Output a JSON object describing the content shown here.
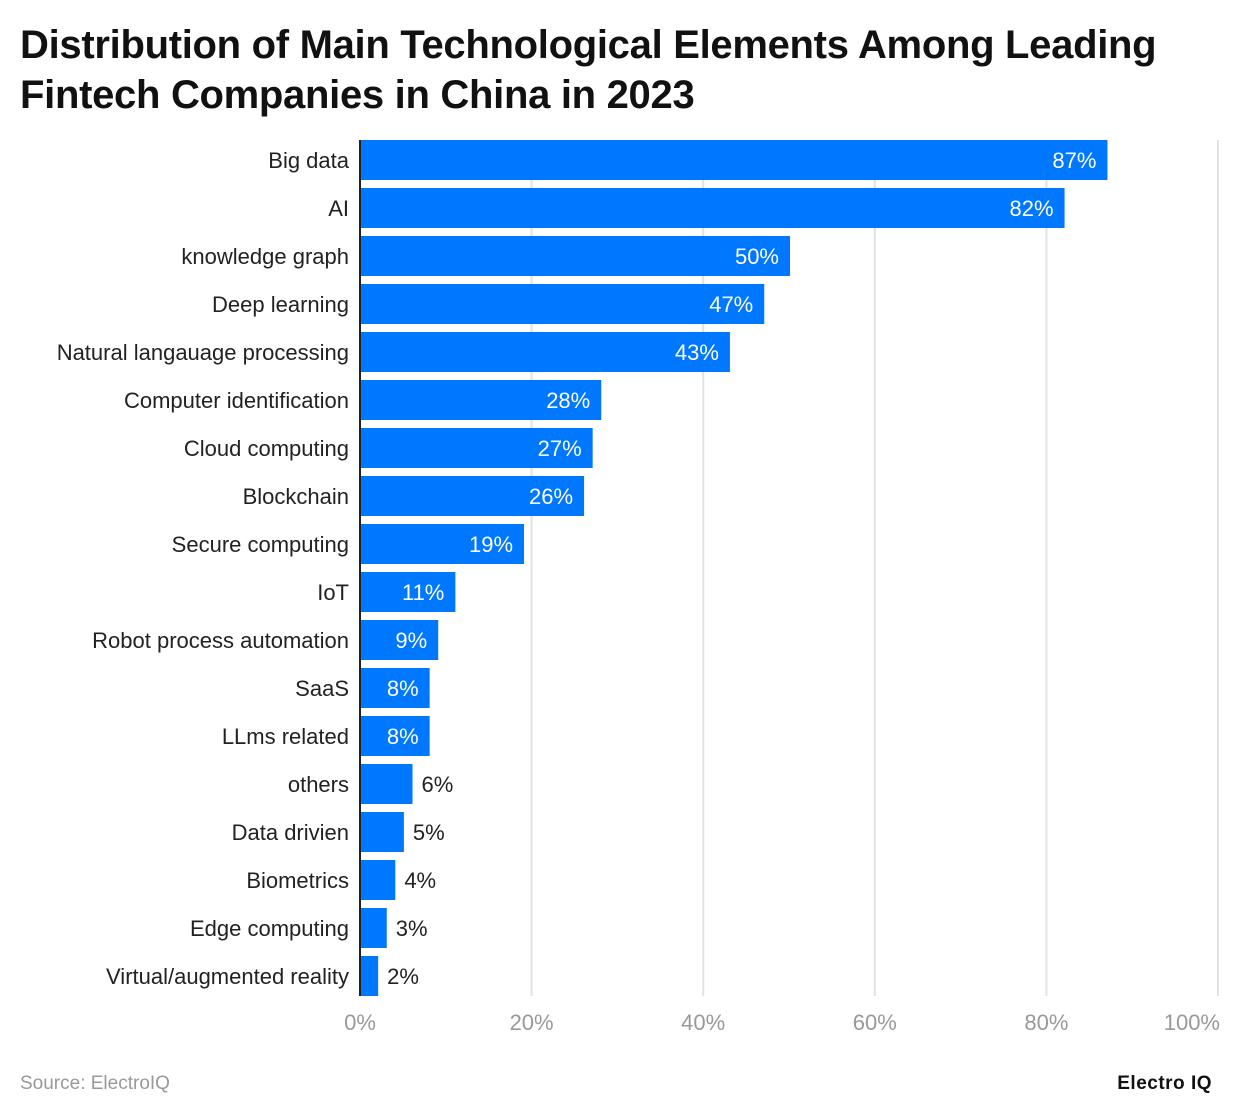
{
  "chart_data": {
    "type": "bar",
    "orientation": "horizontal",
    "title": "Distribution of Main Technological Elements Among Leading Fintech Companies in China in 2023",
    "categories": [
      "Big data",
      "AI",
      "knowledge graph",
      "Deep learning",
      "Natural langauage processing",
      "Computer identification",
      "Cloud computing",
      "Blockchain",
      "Secure computing",
      "IoT",
      "Robot process automation",
      "SaaS",
      "LLms related",
      "others",
      "Data drivien",
      "Biometrics",
      "Edge computing",
      "Virtual/augmented reality"
    ],
    "values": [
      87,
      82,
      50,
      47,
      43,
      28,
      27,
      26,
      19,
      11,
      9,
      8,
      8,
      6,
      5,
      4,
      3,
      2
    ],
    "value_suffix": "%",
    "xlim": [
      0,
      100
    ],
    "xticks": [
      "0%",
      "20%",
      "40%",
      "60%",
      "80%",
      "100%"
    ],
    "grid": true,
    "bar_color": "#0077ff",
    "xlabel": "",
    "ylabel": ""
  },
  "footer": {
    "source": "Source: ElectroIQ",
    "logo": "Electro IQ"
  }
}
